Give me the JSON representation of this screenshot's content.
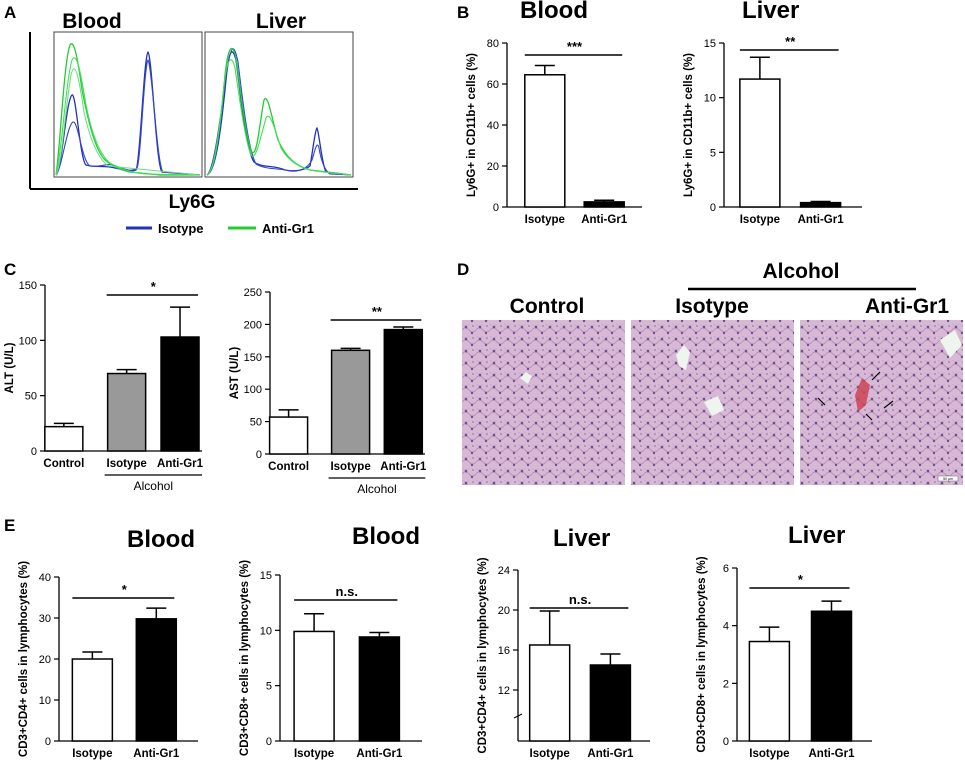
{
  "panels": {
    "A": "A",
    "B": "B",
    "C": "C",
    "D": "D",
    "E": "E"
  },
  "panel_a": {
    "titles": [
      "Blood",
      "Liver"
    ],
    "xlabel": "Ly6G",
    "legend": [
      {
        "name": "Isotype",
        "color": "#2233bb"
      },
      {
        "name": "Anti-Gr1",
        "color": "#22cc33"
      }
    ]
  },
  "panel_d": {
    "group_label": "Alcohol",
    "images": [
      {
        "title": "Control",
        "scale": ""
      },
      {
        "title": "Isotype",
        "scale": ""
      },
      {
        "title": "Anti-Gr1",
        "scale": "50 µm"
      }
    ]
  },
  "chart_data": [
    {
      "id": "b_blood",
      "type": "bar",
      "title": "Blood",
      "ylabel": "Ly6G+ in CD11b+ cells (%)",
      "categories": [
        "Isotype",
        "Anti-Gr1"
      ],
      "values": [
        64.5,
        2.5
      ],
      "errors": [
        4.5,
        0.8
      ],
      "colors": [
        "#ffffff",
        "#000000"
      ],
      "ylim": [
        0,
        80
      ],
      "yticks": [
        0,
        20,
        40,
        60,
        80
      ],
      "sig": "***"
    },
    {
      "id": "b_liver",
      "type": "bar",
      "title": "Liver",
      "ylabel": "Ly6G+ in CD11b+ cells (%)",
      "categories": [
        "Isotype",
        "Anti-Gr1"
      ],
      "values": [
        11.7,
        0.4
      ],
      "errors": [
        2.0,
        0.1
      ],
      "colors": [
        "#ffffff",
        "#000000"
      ],
      "ylim": [
        0,
        15
      ],
      "yticks": [
        0,
        5,
        10,
        15
      ],
      "sig": "**"
    },
    {
      "id": "c_alt",
      "type": "bar",
      "title": "",
      "ylabel": "ALT (U/L)",
      "categories": [
        "Control",
        "Isotype",
        "Anti-Gr1"
      ],
      "values": [
        22,
        70,
        103
      ],
      "errors": [
        3,
        3.5,
        27
      ],
      "colors": [
        "#ffffff",
        "#999999",
        "#000000"
      ],
      "ylim": [
        0,
        150
      ],
      "yticks": [
        0,
        50,
        100,
        150
      ],
      "sig": "*",
      "group_label": "Alcohol"
    },
    {
      "id": "c_ast",
      "type": "bar",
      "title": "",
      "ylabel": "AST (U/L)",
      "categories": [
        "Control",
        "Isotype",
        "Anti-Gr1"
      ],
      "values": [
        57,
        160,
        192
      ],
      "errors": [
        11,
        3,
        4
      ],
      "colors": [
        "#ffffff",
        "#999999",
        "#000000"
      ],
      "ylim": [
        0,
        250
      ],
      "yticks": [
        0,
        50,
        100,
        150,
        200,
        250
      ],
      "sig": "**",
      "group_label": "Alcohol"
    },
    {
      "id": "e_blood_cd4",
      "type": "bar",
      "title": "Blood",
      "ylabel": "CD3+CD4+ cells in lymphocytes (%)",
      "categories": [
        "Isotype",
        "Anti-Gr1"
      ],
      "values": [
        20,
        29.8
      ],
      "errors": [
        1.7,
        2.6
      ],
      "colors": [
        "#ffffff",
        "#000000"
      ],
      "ylim": [
        0,
        40
      ],
      "yticks": [
        0,
        10,
        20,
        30,
        40
      ],
      "sig": "*"
    },
    {
      "id": "e_blood_cd8",
      "type": "bar",
      "title": "Blood",
      "ylabel": "CD3+CD8+ cells in lymphocytes (%)",
      "categories": [
        "Isotype",
        "Anti-Gr1"
      ],
      "values": [
        9.9,
        9.4
      ],
      "errors": [
        1.6,
        0.4
      ],
      "colors": [
        "#ffffff",
        "#000000"
      ],
      "ylim": [
        0,
        15
      ],
      "yticks": [
        0,
        5,
        10,
        15
      ],
      "sig": "n.s."
    },
    {
      "id": "e_liver_cd4",
      "type": "bar",
      "title": "Liver",
      "ylabel": "CD3+CD4+ cells in lymphocytes (%)",
      "categories": [
        "Isotype",
        "Anti-Gr1"
      ],
      "values": [
        16.5,
        14.5
      ],
      "errors": [
        3.4,
        1.1
      ],
      "colors": [
        "#ffffff",
        "#000000"
      ],
      "ylim": [
        10,
        24
      ],
      "yticks": [
        12,
        16,
        20,
        24
      ],
      "sig": "n.s."
    },
    {
      "id": "e_liver_cd8",
      "type": "bar",
      "title": "Liver",
      "ylabel": "CD3+CD8+ cells in lymphocytes (%)",
      "categories": [
        "Isotype",
        "Anti-Gr1"
      ],
      "values": [
        3.45,
        4.5
      ],
      "errors": [
        0.5,
        0.35
      ],
      "colors": [
        "#ffffff",
        "#000000"
      ],
      "ylim": [
        0,
        6
      ],
      "yticks": [
        0,
        2,
        4,
        6
      ],
      "sig": "*"
    }
  ]
}
